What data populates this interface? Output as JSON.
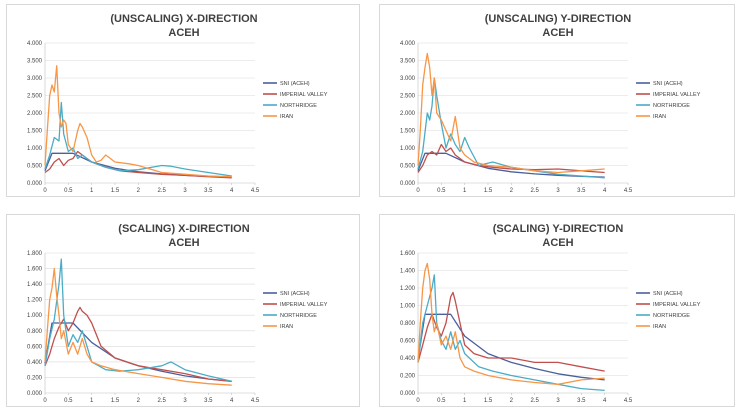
{
  "legend": {
    "series": [
      "SNI (ACEH)",
      "IMPERIAL VALLEY",
      "NORTHRIDGE",
      "IRAN"
    ],
    "colors": {
      "SNI (ACEH)": "#4a5f9c",
      "IMPERIAL VALLEY": "#c0504d",
      "NORTHRIDGE": "#4bacc6",
      "IRAN": "#f79646"
    }
  },
  "chart_data": [
    {
      "type": "line",
      "title": "(UNSCALING) X-DIRECTION",
      "subtitle": "ACEH",
      "xlim": [
        0,
        4.5
      ],
      "xticks": [
        0,
        0.5,
        1,
        1.5,
        2,
        2.5,
        3,
        3.5,
        4,
        4.5
      ],
      "xtick_labels": [
        "0",
        "0.5",
        "1",
        "1.5",
        "2",
        "2.5",
        "3",
        "3.5",
        "4",
        "4.5"
      ],
      "ylim": [
        0,
        4
      ],
      "yticks": [
        0,
        0.5,
        1,
        1.5,
        2,
        2.5,
        3,
        3.5,
        4
      ],
      "ytick_labels": [
        "0.000",
        "0.500",
        "1.000",
        "1.500",
        "2.000",
        "2.500",
        "3.000",
        "3.500",
        "4.000"
      ],
      "grid": true,
      "legend_position": "right",
      "series": [
        {
          "name": "SNI (ACEH)",
          "x": [
            0,
            0.15,
            0.6,
            1.0,
            1.5,
            2.0,
            2.5,
            3.0,
            3.5,
            4.0
          ],
          "y": [
            0.35,
            0.85,
            0.85,
            0.6,
            0.42,
            0.32,
            0.26,
            0.22,
            0.19,
            0.17
          ]
        },
        {
          "name": "IMPERIAL VALLEY",
          "x": [
            0,
            0.1,
            0.2,
            0.3,
            0.4,
            0.5,
            0.6,
            0.7,
            0.8,
            1.0,
            1.3,
            1.6,
            2.0,
            2.5,
            3.0,
            3.5,
            4.0
          ],
          "y": [
            0.3,
            0.4,
            0.6,
            0.7,
            0.5,
            0.65,
            0.7,
            0.9,
            0.8,
            0.6,
            0.45,
            0.35,
            0.3,
            0.25,
            0.22,
            0.18,
            0.15
          ]
        },
        {
          "name": "NORTHRIDGE",
          "x": [
            0,
            0.1,
            0.2,
            0.3,
            0.35,
            0.4,
            0.5,
            0.6,
            0.7,
            0.8,
            1.0,
            1.3,
            1.6,
            2.0,
            2.5,
            2.7,
            3.0,
            3.5,
            4.0
          ],
          "y": [
            0.4,
            0.8,
            1.3,
            1.2,
            2.3,
            1.4,
            0.9,
            1.0,
            0.7,
            0.8,
            0.6,
            0.45,
            0.35,
            0.38,
            0.5,
            0.48,
            0.4,
            0.3,
            0.2
          ]
        },
        {
          "name": "IRAN",
          "x": [
            0,
            0.05,
            0.1,
            0.15,
            0.2,
            0.25,
            0.3,
            0.35,
            0.4,
            0.45,
            0.5,
            0.6,
            0.7,
            0.75,
            0.8,
            0.9,
            1.0,
            1.1,
            1.2,
            1.3,
            1.5,
            1.8,
            2.0,
            2.5,
            3.0,
            3.5,
            4.0
          ],
          "y": [
            0.5,
            1.5,
            2.5,
            2.8,
            2.6,
            3.35,
            2.0,
            1.6,
            1.8,
            1.7,
            1.1,
            0.9,
            1.5,
            1.7,
            1.6,
            1.3,
            0.8,
            0.6,
            0.65,
            0.8,
            0.6,
            0.55,
            0.5,
            0.3,
            0.25,
            0.2,
            0.18
          ]
        }
      ]
    },
    {
      "type": "line",
      "title": "(UNSCALING) Y-DIRECTION",
      "subtitle": "ACEH",
      "xlim": [
        0,
        4.5
      ],
      "xticks": [
        0,
        0.5,
        1,
        1.5,
        2,
        2.5,
        3,
        3.5,
        4,
        4.5
      ],
      "xtick_labels": [
        "0",
        "0.5",
        "1",
        "1.5",
        "2",
        "2.5",
        "3",
        "3.5",
        "4",
        "4.5"
      ],
      "ylim": [
        0,
        4
      ],
      "yticks": [
        0,
        0.5,
        1,
        1.5,
        2,
        2.5,
        3,
        3.5,
        4
      ],
      "ytick_labels": [
        "0.000",
        "0.500",
        "1.000",
        "1.500",
        "2.000",
        "2.500",
        "3.000",
        "3.500",
        "4.000"
      ],
      "grid": true,
      "legend_position": "right",
      "series": [
        {
          "name": "SNI (ACEH)",
          "x": [
            0,
            0.15,
            0.6,
            1.0,
            1.5,
            2.0,
            2.5,
            3.0,
            3.5,
            4.0
          ],
          "y": [
            0.35,
            0.85,
            0.85,
            0.6,
            0.42,
            0.32,
            0.26,
            0.22,
            0.19,
            0.17
          ]
        },
        {
          "name": "IMPERIAL VALLEY",
          "x": [
            0,
            0.1,
            0.2,
            0.3,
            0.4,
            0.5,
            0.6,
            0.7,
            0.8,
            1.0,
            1.3,
            1.6,
            2.0,
            2.5,
            3.0,
            3.5,
            4.0
          ],
          "y": [
            0.3,
            0.5,
            0.8,
            0.9,
            0.8,
            1.1,
            0.9,
            1.0,
            0.8,
            0.6,
            0.5,
            0.45,
            0.4,
            0.38,
            0.4,
            0.35,
            0.3
          ]
        },
        {
          "name": "NORTHRIDGE",
          "x": [
            0,
            0.1,
            0.2,
            0.25,
            0.3,
            0.35,
            0.4,
            0.5,
            0.6,
            0.7,
            0.8,
            0.9,
            1.0,
            1.1,
            1.3,
            1.6,
            2.0,
            2.5,
            3.0,
            3.5,
            4.0
          ],
          "y": [
            0.4,
            0.9,
            2.0,
            1.8,
            2.2,
            3.0,
            2.5,
            1.7,
            1.0,
            1.4,
            1.1,
            0.9,
            1.3,
            1.0,
            0.5,
            0.6,
            0.45,
            0.35,
            0.25,
            0.2,
            0.15
          ]
        },
        {
          "name": "IRAN",
          "x": [
            0,
            0.05,
            0.1,
            0.15,
            0.2,
            0.25,
            0.3,
            0.35,
            0.4,
            0.5,
            0.6,
            0.7,
            0.8,
            0.9,
            1.0,
            1.2,
            1.5,
            2.0,
            2.5,
            3.0,
            3.5,
            4.0
          ],
          "y": [
            0.5,
            1.5,
            2.8,
            3.3,
            3.7,
            3.3,
            2.5,
            3.0,
            2.0,
            1.8,
            1.5,
            1.2,
            1.9,
            1.0,
            0.8,
            0.6,
            0.5,
            0.45,
            0.35,
            0.3,
            0.35,
            0.4
          ]
        }
      ]
    },
    {
      "type": "line",
      "title": "(SCALING) X-DIRECTION",
      "subtitle": "ACEH",
      "xlim": [
        0,
        4.5
      ],
      "xticks": [
        0,
        0.5,
        1,
        1.5,
        2,
        2.5,
        3,
        3.5,
        4,
        4.5
      ],
      "xtick_labels": [
        "0",
        "0.5",
        "1",
        "1.5",
        "2",
        "2.5",
        "3",
        "3.5",
        "4",
        "4.5"
      ],
      "ylim": [
        0,
        1.8
      ],
      "yticks": [
        0,
        0.2,
        0.4,
        0.6,
        0.8,
        1.0,
        1.2,
        1.4,
        1.6,
        1.8
      ],
      "ytick_labels": [
        "0.000",
        "0.200",
        "0.400",
        "0.600",
        "0.800",
        "1.000",
        "1.200",
        "1.400",
        "1.600",
        "1.800"
      ],
      "grid": true,
      "legend_position": "right",
      "series": [
        {
          "name": "SNI (ACEH)",
          "x": [
            0,
            0.15,
            0.6,
            1.0,
            1.5,
            2.0,
            2.5,
            3.0,
            3.5,
            4.0
          ],
          "y": [
            0.38,
            0.9,
            0.9,
            0.65,
            0.45,
            0.35,
            0.28,
            0.22,
            0.18,
            0.15
          ]
        },
        {
          "name": "IMPERIAL VALLEY",
          "x": [
            0,
            0.1,
            0.2,
            0.3,
            0.4,
            0.5,
            0.6,
            0.7,
            0.75,
            0.8,
            0.9,
            1.0,
            1.2,
            1.5,
            2.0,
            2.5,
            3.0,
            3.5,
            4.0
          ],
          "y": [
            0.35,
            0.5,
            0.7,
            0.85,
            0.95,
            0.8,
            0.9,
            1.05,
            1.1,
            1.05,
            1.0,
            0.9,
            0.6,
            0.45,
            0.35,
            0.3,
            0.25,
            0.18,
            0.15
          ]
        },
        {
          "name": "NORTHRIDGE",
          "x": [
            0,
            0.1,
            0.2,
            0.3,
            0.35,
            0.4,
            0.5,
            0.6,
            0.7,
            0.8,
            0.9,
            1.0,
            1.3,
            1.6,
            2.0,
            2.5,
            2.7,
            3.0,
            3.5,
            4.0
          ],
          "y": [
            0.35,
            0.7,
            0.95,
            1.4,
            1.72,
            1.0,
            0.6,
            0.75,
            0.65,
            0.8,
            0.6,
            0.4,
            0.3,
            0.28,
            0.3,
            0.35,
            0.4,
            0.3,
            0.22,
            0.15
          ]
        },
        {
          "name": "IRAN",
          "x": [
            0,
            0.05,
            0.1,
            0.15,
            0.2,
            0.25,
            0.3,
            0.35,
            0.4,
            0.5,
            0.6,
            0.7,
            0.8,
            0.9,
            1.0,
            1.2,
            1.5,
            2.0,
            2.5,
            3.0,
            3.5,
            4.0
          ],
          "y": [
            0.4,
            0.8,
            1.2,
            1.35,
            1.6,
            1.25,
            1.0,
            0.7,
            0.8,
            0.5,
            0.65,
            0.5,
            0.7,
            0.5,
            0.4,
            0.35,
            0.3,
            0.25,
            0.2,
            0.15,
            0.12,
            0.1
          ]
        }
      ]
    },
    {
      "type": "line",
      "title": "(SCALING) Y-DIRECTION",
      "subtitle": "ACEH",
      "xlim": [
        0,
        4.5
      ],
      "xticks": [
        0,
        0.5,
        1,
        1.5,
        2,
        2.5,
        3,
        3.5,
        4,
        4.5
      ],
      "xtick_labels": [
        "0",
        "0.5",
        "1",
        "1.5",
        "2",
        "2.5",
        "3",
        "3.5",
        "4",
        "4.5"
      ],
      "ylim": [
        0,
        1.6
      ],
      "yticks": [
        0,
        0.2,
        0.4,
        0.6,
        0.8,
        1.0,
        1.2,
        1.4,
        1.6
      ],
      "ytick_labels": [
        "0.000",
        "0.200",
        "0.400",
        "0.600",
        "0.800",
        "1.000",
        "1.200",
        "1.400",
        "1.600"
      ],
      "grid": true,
      "legend_position": "right",
      "series": [
        {
          "name": "SNI (ACEH)",
          "x": [
            0,
            0.15,
            0.7,
            1.0,
            1.5,
            2.0,
            2.5,
            3.0,
            3.5,
            4.0
          ],
          "y": [
            0.38,
            0.9,
            0.9,
            0.65,
            0.45,
            0.35,
            0.28,
            0.22,
            0.18,
            0.15
          ]
        },
        {
          "name": "IMPERIAL VALLEY",
          "x": [
            0,
            0.1,
            0.2,
            0.3,
            0.4,
            0.5,
            0.6,
            0.7,
            0.75,
            0.8,
            0.9,
            1.0,
            1.2,
            1.5,
            2.0,
            2.5,
            3.0,
            3.5,
            4.0
          ],
          "y": [
            0.35,
            0.55,
            0.75,
            0.9,
            0.75,
            0.65,
            0.8,
            1.1,
            1.15,
            1.05,
            0.8,
            0.55,
            0.45,
            0.4,
            0.4,
            0.35,
            0.35,
            0.3,
            0.25
          ]
        },
        {
          "name": "NORTHRIDGE",
          "x": [
            0,
            0.1,
            0.2,
            0.3,
            0.35,
            0.4,
            0.5,
            0.6,
            0.7,
            0.8,
            0.9,
            1.0,
            1.3,
            1.6,
            2.0,
            2.5,
            3.0,
            3.5,
            4.0
          ],
          "y": [
            0.35,
            0.8,
            1.0,
            1.2,
            1.35,
            0.8,
            0.6,
            0.5,
            0.7,
            0.5,
            0.6,
            0.45,
            0.3,
            0.25,
            0.2,
            0.15,
            0.1,
            0.05,
            0.03
          ]
        },
        {
          "name": "IRAN",
          "x": [
            0,
            0.05,
            0.1,
            0.15,
            0.2,
            0.25,
            0.3,
            0.35,
            0.4,
            0.5,
            0.6,
            0.7,
            0.8,
            0.9,
            1.0,
            1.2,
            1.5,
            2.0,
            2.5,
            3.0,
            3.5,
            4.0
          ],
          "y": [
            0.35,
            0.8,
            1.2,
            1.4,
            1.48,
            1.3,
            0.9,
            0.7,
            0.8,
            0.55,
            0.65,
            0.5,
            0.7,
            0.4,
            0.3,
            0.25,
            0.2,
            0.15,
            0.12,
            0.1,
            0.15,
            0.17
          ]
        }
      ]
    }
  ]
}
